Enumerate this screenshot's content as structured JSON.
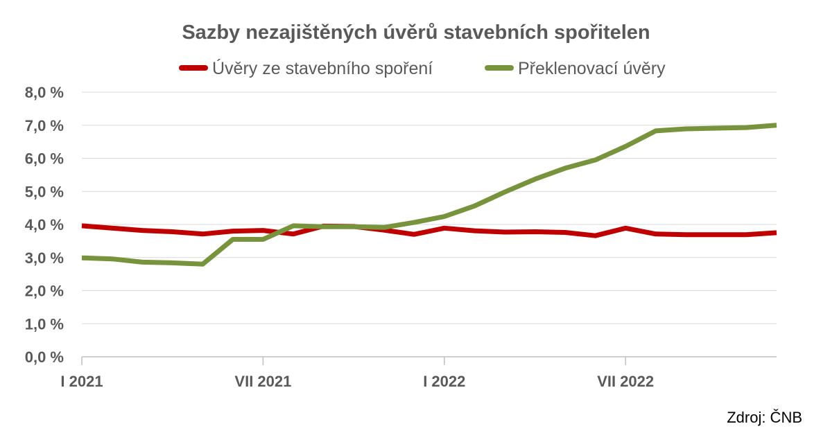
{
  "chart_data": {
    "type": "line",
    "title": "Sazby nezajištěných úvěrů stavebních spořitelen",
    "source": "Zdroj: ČNB",
    "x": [
      "2021-01",
      "2021-02",
      "2021-03",
      "2021-04",
      "2021-05",
      "2021-06",
      "2021-07",
      "2021-08",
      "2021-09",
      "2021-10",
      "2021-11",
      "2021-12",
      "2022-01",
      "2022-02",
      "2022-03",
      "2022-04",
      "2022-05",
      "2022-06",
      "2022-07",
      "2022-08",
      "2022-09",
      "2022-10",
      "2022-11",
      "2022-12"
    ],
    "xtick_labels": [
      "I 2021",
      "VII 2021",
      "I 2022",
      "VII 2022"
    ],
    "ytick_labels": [
      "0,0 %",
      "1,0 %",
      "2,0 %",
      "3,0 %",
      "4,0 %",
      "5,0 %",
      "6,0 %",
      "7,0 %",
      "8,0 %"
    ],
    "ylim": [
      0,
      8
    ],
    "grid": true,
    "legend_position": "top",
    "series": [
      {
        "name": "Úvěry ze stavebního spoření",
        "color": "#c00000",
        "values": [
          3.96,
          3.89,
          3.82,
          3.78,
          3.71,
          3.8,
          3.82,
          3.71,
          3.95,
          3.94,
          3.83,
          3.7,
          3.89,
          3.81,
          3.77,
          3.78,
          3.76,
          3.66,
          3.89,
          3.71,
          3.69,
          3.69,
          3.69,
          3.75
        ]
      },
      {
        "name": "Překlenovací úvěry",
        "color": "#77933c",
        "values": [
          2.99,
          2.96,
          2.86,
          2.84,
          2.8,
          3.55,
          3.55,
          3.96,
          3.93,
          3.93,
          3.91,
          4.06,
          4.24,
          4.56,
          4.98,
          5.37,
          5.7,
          5.95,
          6.36,
          6.83,
          6.89,
          6.91,
          6.93,
          7.0
        ]
      }
    ]
  }
}
